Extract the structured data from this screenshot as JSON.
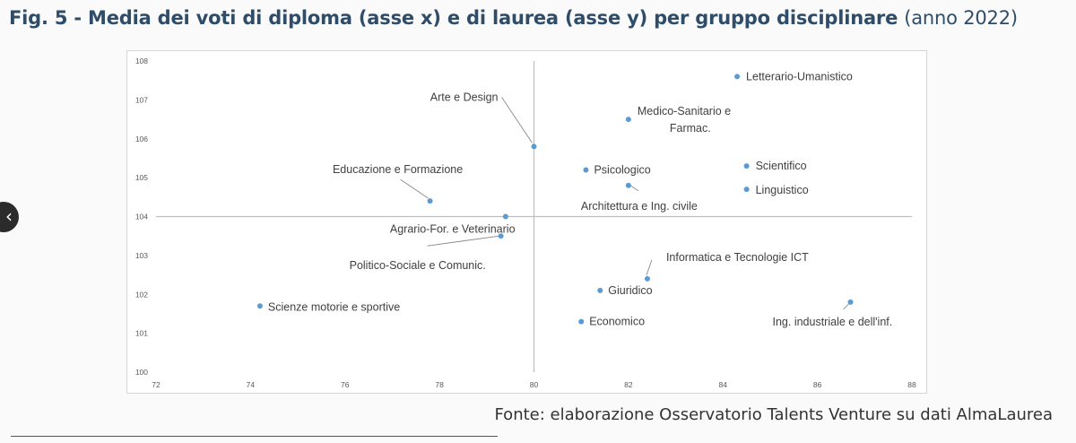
{
  "title_main": "Fig. 5 - Media dei voti di diploma (asse x) e di laurea (asse y) per gruppo disciplinare",
  "title_light": "(anno 2022)",
  "source": "Fonte: elaborazione Osservatorio Talents Venture su dati AlmaLaurea",
  "nav": {
    "back_icon": "chevron-left-icon",
    "back_glyph": "‹"
  },
  "colors": {
    "point": "#5b9bd5",
    "axis": "#bfbfbf",
    "tick_text": "#595959",
    "label_text": "#404040",
    "title": "#2f4d68"
  },
  "chart_data": {
    "type": "scatter",
    "title": "Media dei voti di diploma (asse x) e di laurea (asse y) per gruppo disciplinare",
    "xlabel": "",
    "ylabel": "",
    "xlim": [
      72,
      88
    ],
    "ylim": [
      100,
      108
    ],
    "xticks": [
      72,
      74,
      76,
      78,
      80,
      82,
      84,
      86,
      88
    ],
    "yticks": [
      100,
      101,
      102,
      103,
      104,
      105,
      106,
      107,
      108
    ],
    "grid": false,
    "reference_lines": {
      "x": 80,
      "y": 104
    },
    "points": [
      {
        "label": "Letterario-Umanistico",
        "x": 84.3,
        "y": 107.6
      },
      {
        "label": "Medico-Sanitario e Farmac.",
        "x": 82.0,
        "y": 106.5
      },
      {
        "label": "Arte e Design",
        "x": 80.0,
        "y": 105.8
      },
      {
        "label": "Psicologico",
        "x": 81.1,
        "y": 105.2
      },
      {
        "label": "Scientifico",
        "x": 84.5,
        "y": 105.3
      },
      {
        "label": "Architettura e Ing. civile",
        "x": 82.0,
        "y": 104.8
      },
      {
        "label": "Linguistico",
        "x": 84.5,
        "y": 104.7
      },
      {
        "label": "Educazione e Formazione",
        "x": 77.8,
        "y": 104.4
      },
      {
        "label": "Agrario-For. e Veterinario",
        "x": 79.4,
        "y": 104.0
      },
      {
        "label": "Politico-Sociale e Comunic.",
        "x": 79.3,
        "y": 103.5
      },
      {
        "label": "Informatica e Tecnologie ICT",
        "x": 82.4,
        "y": 102.4
      },
      {
        "label": "Giuridico",
        "x": 81.4,
        "y": 102.1
      },
      {
        "label": "Ing. industriale e dell'inf.",
        "x": 86.7,
        "y": 101.8
      },
      {
        "label": "Scienze motorie e sportive",
        "x": 74.2,
        "y": 101.7
      },
      {
        "label": "Economico",
        "x": 81.0,
        "y": 101.3
      }
    ]
  }
}
